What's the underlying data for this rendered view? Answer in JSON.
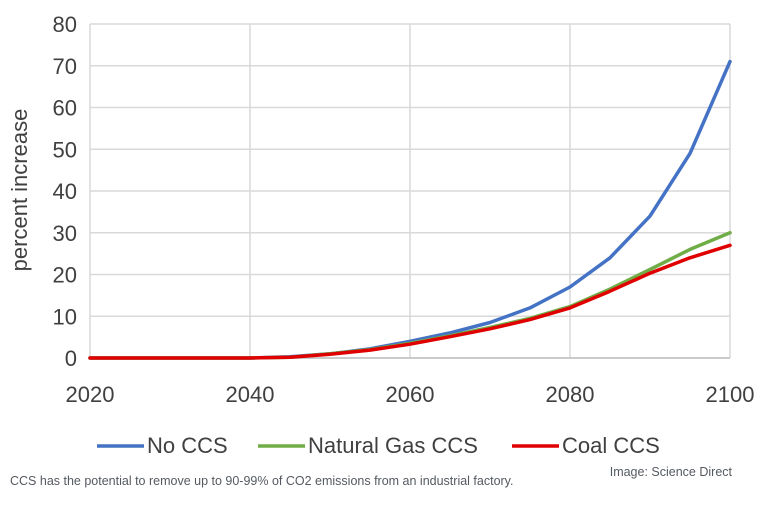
{
  "chart_data": {
    "type": "line",
    "title": "",
    "xlabel": "",
    "ylabel": "percent increase",
    "x": [
      2020,
      2025,
      2030,
      2035,
      2040,
      2045,
      2050,
      2055,
      2060,
      2065,
      2070,
      2075,
      2080,
      2085,
      2090,
      2095,
      2100
    ],
    "xticks": [
      "2020",
      "2040",
      "2060",
      "2080",
      "2100"
    ],
    "yticks": [
      "0",
      "10",
      "20",
      "30",
      "40",
      "50",
      "60",
      "70",
      "80"
    ],
    "xlim": [
      2020,
      2100
    ],
    "ylim": [
      0,
      80
    ],
    "grid": true,
    "legend_position": "bottom",
    "series": [
      {
        "name": "No CCS",
        "color": "#4472c4",
        "values": [
          0,
          0,
          0,
          0,
          0,
          0.3,
          1,
          2.2,
          4,
          6,
          8.5,
          12,
          17,
          24,
          34,
          49,
          71
        ]
      },
      {
        "name": "Natural Gas CCS",
        "color": "#70ad47",
        "values": [
          0,
          0,
          0,
          0,
          0,
          0.2,
          1,
          2,
          3.5,
          5.3,
          7.3,
          9.5,
          12.3,
          16.5,
          21.2,
          26,
          30
        ]
      },
      {
        "name": "Coal CCS",
        "color": "#e00000",
        "values": [
          0,
          0,
          0,
          0,
          0,
          0.2,
          0.9,
          1.9,
          3.3,
          5.1,
          7,
          9.2,
          12,
          16,
          20.3,
          24,
          27
        ]
      }
    ]
  },
  "caption": "CCS has the potential to remove up to 90-99% of CO2 emissions from an industrial factory.",
  "credit": "Image: Science Direct"
}
